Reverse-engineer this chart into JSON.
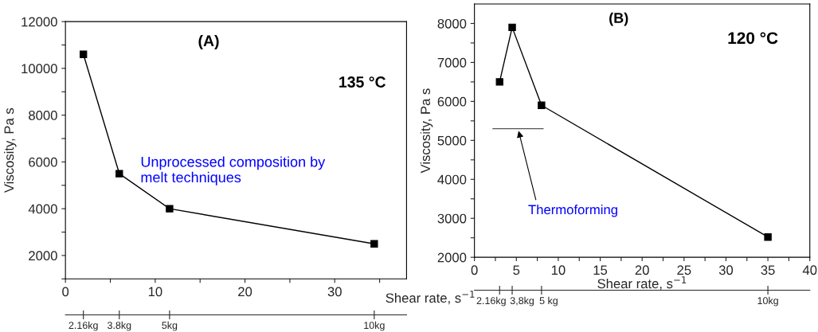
{
  "chart_data": [
    {
      "type": "line",
      "xlabel": "Shear rate, s$^{−1}$",
      "ylabel": "Viscosity, Pa s",
      "marker": "square",
      "grid": false,
      "legend": false,
      "x": [
        2,
        6,
        11.6,
        34.4
      ],
      "series": [
        {
          "color": "#000000",
          "values": [
            10600,
            5500,
            4000,
            2500
          ]
        }
      ],
      "xlim": [
        0,
        38
      ],
      "xticks": [
        0,
        {
          "value": 5,
          "label": null
        },
        10,
        {
          "value": 15,
          "label": null
        },
        20,
        {
          "value": 25,
          "label": null
        },
        30,
        {
          "value": 35,
          "label": null
        }
      ],
      "ylim": [
        1000,
        12000
      ],
      "yticks": [
        {
          "value": 1000,
          "label": null
        },
        2000,
        {
          "value": 3000,
          "label": null
        },
        4000,
        {
          "value": 5000,
          "label": null
        },
        6000,
        {
          "value": 7000,
          "label": null
        },
        8000,
        {
          "value": 9000,
          "label": null
        },
        10000,
        {
          "value": 11000,
          "label": null
        },
        12000
      ],
      "annotations": [
        "(A)",
        "135 °C",
        "Unprocessed composition by\nmelt techniques",
        "2.16kg",
        "3.8kg",
        "5kg",
        "10kg"
      ]
    },
    {
      "type": "line",
      "xlabel": "Shear rate, s$^{−1}$",
      "ylabel": "Viscosity, Pa s",
      "marker": "square",
      "grid": false,
      "legend": false,
      "x": [
        3,
        4.5,
        8,
        35
      ],
      "series": [
        {
          "color": "#000000",
          "values": [
            6500,
            7900,
            5900,
            2520
          ]
        },
        {
          "color": "#555555",
          "marker": "none",
          "x": [
            2.2,
            8.2
          ],
          "values": [
            5300,
            5300
          ]
        }
      ],
      "xlim": [
        0,
        40
      ],
      "xticks": [
        0,
        {
          "value": 2.5,
          "label": null
        },
        5,
        {
          "value": 7.5,
          "label": null
        },
        10,
        {
          "value": 12.5,
          "label": null
        },
        15,
        {
          "value": 17.5,
          "label": null
        },
        20,
        {
          "value": 22.5,
          "label": null
        },
        25,
        {
          "value": 27.5,
          "label": null
        },
        30,
        {
          "value": 32.5,
          "label": null
        },
        35,
        {
          "value": 37.5,
          "label": null
        },
        40
      ],
      "ylim": [
        2000,
        8500
      ],
      "yticks": [
        2000,
        {
          "value": 2500,
          "label": null
        },
        3000,
        {
          "value": 3500,
          "label": null
        },
        4000,
        {
          "value": 4500,
          "label": null
        },
        5000,
        {
          "value": 5500,
          "label": null
        },
        6000,
        {
          "value": 6500,
          "label": null
        },
        7000,
        {
          "value": 7500,
          "label": null
        },
        8000
      ],
      "annotations": [
        "(B)",
        "120 °C",
        {
          "text": "Thermoforming",
          "x": 5.2,
          "y": 5300
        },
        "2.16kg",
        "3,8kg",
        "5 kg",
        "10kg"
      ]
    }
  ]
}
